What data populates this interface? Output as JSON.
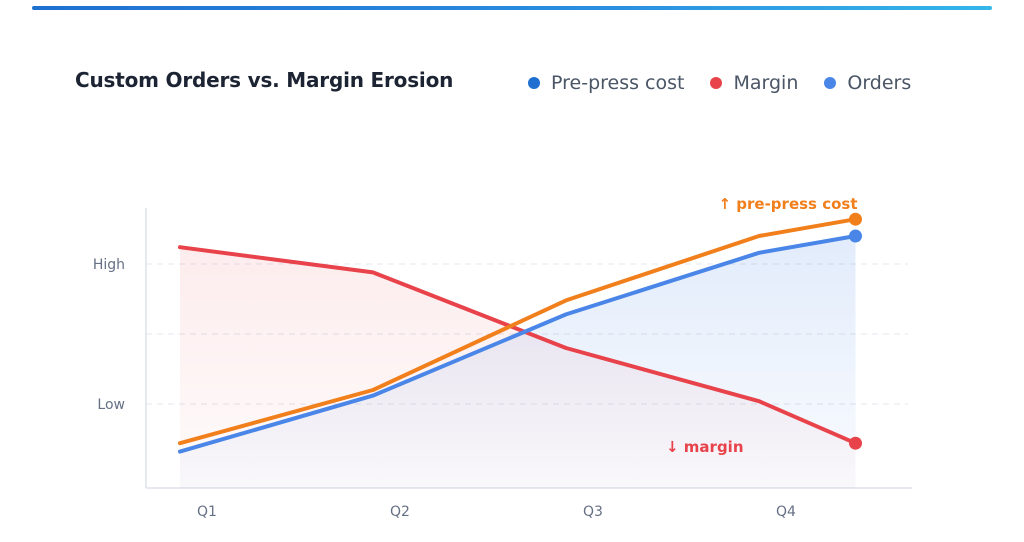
{
  "chart_data": {
    "type": "line",
    "title": "Custom Orders vs. Margin Erosion",
    "categories": [
      "Q1",
      "Q2",
      "Q3",
      "Q4"
    ],
    "x": [
      0,
      1,
      2,
      3,
      3.5
    ],
    "ylim": [
      0,
      1
    ],
    "yticks": [
      {
        "value": 0.3,
        "label": "Low"
      },
      {
        "value": 0.55,
        "label": ""
      },
      {
        "value": 0.8,
        "label": "High"
      }
    ],
    "grid": true,
    "legend_position": "top-right",
    "series": [
      {
        "name": "Pre-press cost",
        "key": "prepress",
        "color": "#f07f1c",
        "legend_color": "#1f6fd1",
        "values": [
          0.16,
          0.35,
          0.67,
          0.9,
          0.96
        ]
      },
      {
        "name": "Margin",
        "key": "margin",
        "color": "#e8424a",
        "legend_color": "#e8424a",
        "values": [
          0.86,
          0.77,
          0.5,
          0.31,
          0.16
        ]
      },
      {
        "name": "Orders",
        "key": "orders",
        "color": "#4a86e8",
        "legend_color": "#4a86e8",
        "values": [
          0.13,
          0.33,
          0.62,
          0.84,
          0.9
        ]
      }
    ],
    "annotations": [
      {
        "text": "↑ pre-press cost",
        "series": "prepress",
        "color": "#f07f1c"
      },
      {
        "text": "↓ margin",
        "series": "margin",
        "color": "#e8424a"
      }
    ]
  }
}
